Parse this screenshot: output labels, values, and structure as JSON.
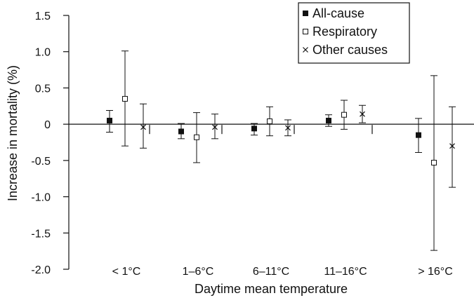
{
  "chart_data": {
    "type": "scatter",
    "title": "",
    "xlabel": "Daytime mean temperature",
    "ylabel": "Increase in mortality (%)",
    "categories": [
      "< 1°C",
      "1–6°C",
      "6–11°C",
      "11–16°C",
      "> 16°C"
    ],
    "yticks": [
      "1.5",
      "1.0",
      "0.5",
      "0",
      "-0.5",
      "-1.0",
      "-1.5",
      "-2.0"
    ],
    "ylim": [
      -2.0,
      1.5
    ],
    "grid": false,
    "legend_position": "top-right",
    "series": [
      {
        "name": "All-cause",
        "marker": "filled-square",
        "values": [
          0.05,
          -0.1,
          -0.06,
          0.05,
          -0.15
        ],
        "ci_low": [
          -0.11,
          -0.2,
          -0.15,
          -0.03,
          -0.39
        ],
        "ci_high": [
          0.19,
          0.01,
          0.01,
          0.13,
          0.08
        ]
      },
      {
        "name": "Respiratory",
        "marker": "open-square",
        "values": [
          0.35,
          -0.18,
          0.04,
          0.13,
          -0.53
        ],
        "ci_low": [
          -0.3,
          -0.53,
          -0.16,
          -0.07,
          -1.74
        ],
        "ci_high": [
          1.01,
          0.16,
          0.24,
          0.33,
          0.67
        ]
      },
      {
        "name": "Other causes",
        "marker": "cross",
        "values": [
          -0.04,
          -0.04,
          -0.05,
          0.14,
          -0.3
        ],
        "ci_low": [
          -0.33,
          -0.2,
          -0.16,
          0.02,
          -0.87
        ],
        "ci_high": [
          0.28,
          0.14,
          0.06,
          0.26,
          0.24
        ]
      }
    ]
  }
}
